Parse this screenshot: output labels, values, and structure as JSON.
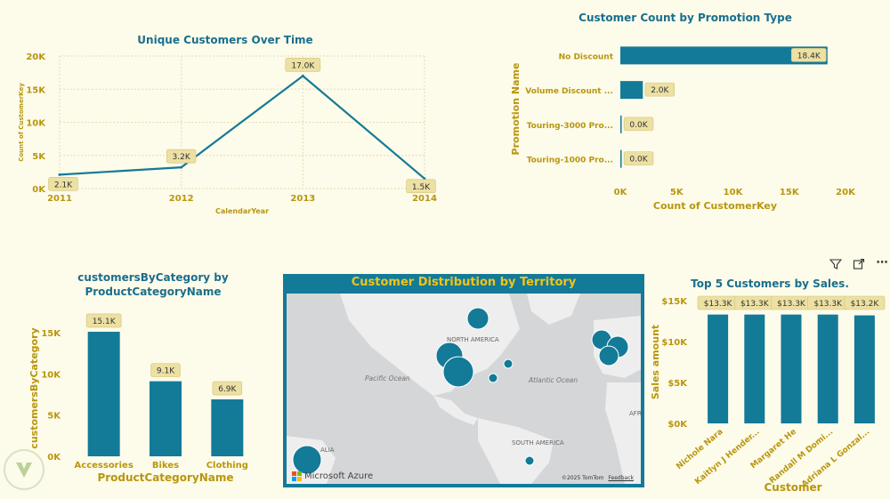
{
  "colors": {
    "accent": "#137a98",
    "gold": "#b8960f",
    "label_bg": "#ece0a3",
    "background": "#fdfbe9"
  },
  "toolbar": {
    "filter_icon": "filter-icon",
    "expand_icon": "focus-mode-icon",
    "more_icon": "more-options-icon"
  },
  "map": {
    "title": "Customer Distribution by Territory",
    "labels": {
      "north_america": "NORTH AMERICA",
      "south_america": "SOUTH AMERICA",
      "pacific": "Pacific Ocean",
      "atlantic": "Atlantic Ocean",
      "australia": "ALIA",
      "afr": "AFR"
    },
    "branding": "Microsoft Azure",
    "credits": "©2025 TomTom",
    "feedback": "Feedback",
    "bubbles": [
      {
        "region": "Canada"
      },
      {
        "region": "West US 1"
      },
      {
        "region": "West US 2"
      },
      {
        "region": "Central US"
      },
      {
        "region": "East US"
      },
      {
        "region": "UK"
      },
      {
        "region": "Germany"
      },
      {
        "region": "France"
      },
      {
        "region": "Brazil"
      },
      {
        "region": "Australia"
      }
    ]
  },
  "chart_data": [
    {
      "id": "line",
      "type": "line",
      "title": "Unique Customers Over Time",
      "xlabel": "CalendarYear",
      "ylabel": "Count of CustomerKey",
      "categories": [
        "2011",
        "2012",
        "2013",
        "2014"
      ],
      "values": [
        2100,
        3200,
        17000,
        1500
      ],
      "data_labels": [
        "2.1K",
        "3.2K",
        "17.0K",
        "1.5K"
      ],
      "yticks": [
        "0K",
        "5K",
        "10K",
        "15K",
        "20K"
      ],
      "ylim": [
        0,
        20000
      ],
      "grid": true
    },
    {
      "id": "hbar",
      "type": "bar",
      "orientation": "horizontal",
      "title": "Customer Count by Promotion Type",
      "xlabel": "Count of CustomerKey",
      "ylabel": "Promotion Name",
      "categories": [
        "No Discount",
        "Volume Discount ...",
        "Touring-3000 Pro...",
        "Touring-1000 Pro..."
      ],
      "values": [
        18400,
        2000,
        0,
        0
      ],
      "data_labels": [
        "18.4K",
        "2.0K",
        "0.0K",
        "0.0K"
      ],
      "xticks": [
        "0K",
        "5K",
        "10K",
        "15K",
        "20K"
      ],
      "xlim": [
        0,
        20000
      ]
    },
    {
      "id": "cat",
      "type": "bar",
      "title": "customersByCategory by ProductCategoryName",
      "title_lines": [
        "customersByCategory by",
        "ProductCategoryName"
      ],
      "xlabel": "ProductCategoryName",
      "ylabel": "customersByCategory",
      "categories": [
        "Accessories",
        "Bikes",
        "Clothing"
      ],
      "values": [
        15100,
        9100,
        6900
      ],
      "data_labels": [
        "15.1K",
        "9.1K",
        "6.9K"
      ],
      "yticks": [
        "0K",
        "5K",
        "10K",
        "15K"
      ],
      "ylim": [
        0,
        16500
      ]
    },
    {
      "id": "top5",
      "type": "bar",
      "title": "Top 5 Customers by Sales.",
      "xlabel": "Customer",
      "ylabel": "Sales amount",
      "categories": [
        "Nichole Nara",
        "Kaitlyn J Hender...",
        "Margaret He",
        "Randall M Domi...",
        "Adriana L Gonzal..."
      ],
      "values": [
        13300,
        13300,
        13300,
        13300,
        13200
      ],
      "data_labels": [
        "$13.3K",
        "$13.3K",
        "$13.3K",
        "$13.3K",
        "$13.2K"
      ],
      "yticks": [
        "$0K",
        "$5K",
        "$10K",
        "$15K"
      ],
      "ylim": [
        0,
        15000
      ]
    }
  ]
}
